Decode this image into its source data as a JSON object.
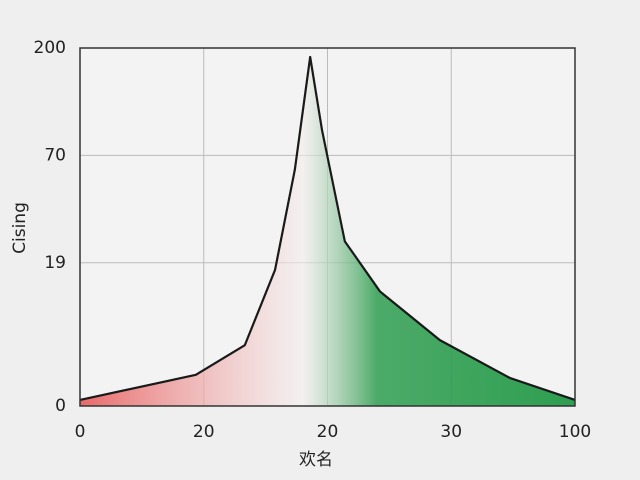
{
  "chart_data": {
    "type": "area",
    "x_label": "欢名",
    "y_label": "Cising",
    "x": [
      0,
      23.4,
      33.3,
      39.4,
      43.4,
      46.5,
      48.9,
      53.5,
      60.6,
      72.7,
      86.9,
      100
    ],
    "values": [
      1.7,
      8.7,
      17,
      38,
      66,
      97.5,
      77,
      46,
      32,
      18.4,
      7.8,
      1.7
    ],
    "xlim": [
      0,
      100
    ],
    "xticks": [
      0,
      {
        "value": 25,
        "label": "20"
      },
      {
        "value": 50,
        "label": "20"
      },
      {
        "value": 75,
        "label": "30"
      },
      100
    ],
    "ylim": [
      0,
      100
    ],
    "yticks": [
      0,
      {
        "value": 40,
        "label": "19"
      },
      70,
      {
        "value": 100,
        "label": "200"
      }
    ],
    "grid": true,
    "colors": [
      "#e85a5a",
      "#2e9e50"
    ]
  }
}
